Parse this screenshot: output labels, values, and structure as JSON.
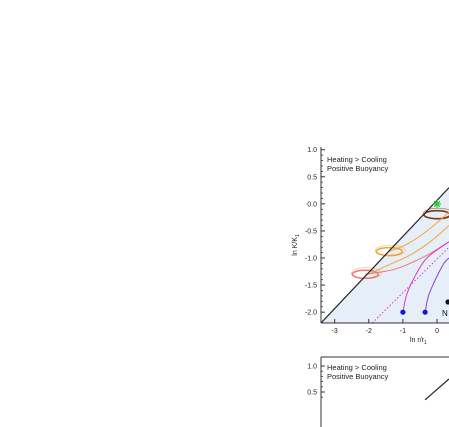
{
  "figure": {
    "panel_top": {
      "annotation_line1": "Heating > Cooling",
      "annotation_line2": "Positive Buoyancy",
      "ylabel": "ln K/K",
      "ylabel_sub": "1",
      "xlabel": "ln r/r",
      "xlabel_sub": "1",
      "cut_label": "N"
    },
    "panel_bottom": {
      "annotation_line1": "Heating > Cooling",
      "annotation_line2": "Positive Buoyancy"
    }
  },
  "chart_data": [
    {
      "type": "line",
      "panel": "top",
      "xlabel": "ln r/r1",
      "ylabel": "ln K/K1",
      "xlim": [
        -3.4,
        0.35
      ],
      "ylim": [
        -2.2,
        1.05
      ],
      "x_ticks": [
        -3,
        -2,
        -1,
        0
      ],
      "x_tick_labels": [
        "-3",
        "-2",
        "-1",
        "0"
      ],
      "y_ticks": [
        1.0,
        0.5,
        0.0,
        -0.5,
        -1.0,
        -1.5,
        -2.0
      ],
      "y_tick_labels": [
        "1.0",
        "0.5",
        "0.0",
        "-0.5",
        "-1.0",
        "-1.5",
        "-2.0"
      ],
      "shaded_region": "below black diagonal line (light blue)",
      "colors": {
        "black_line": "#222222",
        "shade": "#e6eef8",
        "orange": "#f4a53a",
        "brown": "#7a3b1a",
        "salmon": "#f07a6a",
        "magenta": "#d63cc8",
        "purple": "#8a3cd6",
        "blue_point": "#1414e0",
        "green_star": "#22cc22"
      },
      "diagonal_line": {
        "x": [
          -3.4,
          0.35
        ],
        "y": [
          -2.2,
          0.3
        ]
      },
      "dotted_line": {
        "x": [
          -1.9,
          0.35
        ],
        "y": [
          -2.2,
          -0.8
        ]
      },
      "loops": [
        {
          "center_x": 0.0,
          "center_y": -0.2,
          "color": "brown"
        },
        {
          "center_x": -1.4,
          "center_y": -0.88,
          "color": "orange"
        },
        {
          "center_x": -2.1,
          "center_y": -1.3,
          "color": "salmon"
        }
      ],
      "trajectories": [
        {
          "color": "orange",
          "x": [
            -2.0,
            -1.5,
            -0.8,
            -0.2,
            0.35
          ],
          "y": [
            -1.3,
            -1.15,
            -0.95,
            -0.7,
            -0.4
          ]
        },
        {
          "color": "orange",
          "x": [
            -1.4,
            -0.9,
            -0.4,
            0.0,
            0.35
          ],
          "y": [
            -0.88,
            -0.75,
            -0.55,
            -0.35,
            -0.15
          ]
        },
        {
          "color": "salmon",
          "x": [
            -2.1,
            -1.2,
            -0.3,
            0.35
          ],
          "y": [
            -1.3,
            -1.2,
            -0.95,
            -0.7
          ]
        },
        {
          "color": "magenta",
          "x": [
            -1.0,
            -0.9,
            -0.7,
            -0.3,
            0.35
          ],
          "y": [
            -2.0,
            -1.7,
            -1.4,
            -1.0,
            -0.7
          ]
        },
        {
          "color": "purple",
          "x": [
            -0.35,
            -0.25,
            -0.05,
            0.2,
            0.35
          ],
          "y": [
            -2.0,
            -1.7,
            -1.4,
            -1.1,
            -1.0
          ]
        }
      ],
      "points": [
        {
          "x": -1.0,
          "y": -2.0,
          "marker": "circle",
          "color": "blue_point"
        },
        {
          "x": -0.35,
          "y": -2.0,
          "marker": "circle",
          "color": "blue_point"
        },
        {
          "x": 0.0,
          "y": 0.0,
          "marker": "star",
          "color": "green_star"
        }
      ]
    },
    {
      "type": "line",
      "panel": "bottom",
      "ylim": [
        0.3,
        1.05
      ],
      "y_ticks": [
        1.0,
        0.5
      ],
      "y_tick_labels": [
        "1.0",
        "0.5"
      ],
      "diagonal_line": {
        "x": [
          -0.35,
          0.35
        ],
        "y": [
          0.35,
          0.75
        ]
      }
    }
  ]
}
